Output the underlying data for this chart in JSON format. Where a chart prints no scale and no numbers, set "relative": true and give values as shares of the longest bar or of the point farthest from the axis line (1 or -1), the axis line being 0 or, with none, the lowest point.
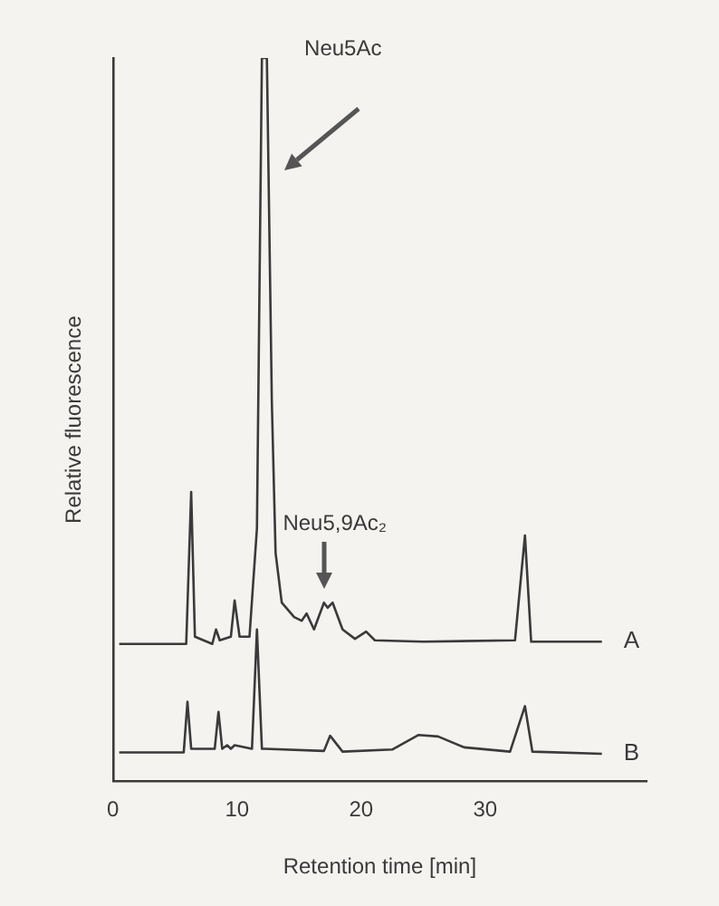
{
  "chart_data": {
    "type": "line",
    "relative": true,
    "xlabel": "Retention time [min]",
    "ylabel": "Relative fluorescence",
    "xlim": [
      0,
      43
    ],
    "xticks": [
      0,
      10,
      20,
      30
    ],
    "grid": false,
    "legend": false,
    "marker": "none",
    "line_style": "solid",
    "annotations": [
      {
        "text": "Neu5Ac",
        "x": 12.5,
        "y": 1
      },
      {
        "text": "Neu5,9Ac₂",
        "x": 17,
        "y": 0.25
      }
    ],
    "series": [
      {
        "name": "A",
        "color": "#3a3a3a",
        "x": [
          0.5,
          5.9,
          6.3,
          6.6,
          8.0,
          8.3,
          8.6,
          9.5,
          9.8,
          10.2,
          11.0,
          11.6,
          12.0,
          12.4,
          12.8,
          13.1,
          13.6,
          14.6,
          15.2,
          15.6,
          16.2,
          17.0,
          17.3,
          17.7,
          18.5,
          19.5,
          20.4,
          21.1,
          25,
          32.4,
          33.2,
          33.7,
          39.4
        ],
        "values": [
          0.19,
          0.19,
          0.4,
          0.2,
          0.19,
          0.21,
          0.195,
          0.2,
          0.25,
          0.2,
          0.2,
          0.35,
          1.0,
          1.0,
          0.525,
          0.316,
          0.247,
          0.227,
          0.222,
          0.232,
          0.21,
          0.247,
          0.24,
          0.247,
          0.21,
          0.197,
          0.207,
          0.195,
          0.193,
          0.195,
          0.34,
          0.193,
          0.193
        ]
      },
      {
        "name": "B",
        "color": "#3a3a3a",
        "x": [
          0.5,
          5.7,
          6.0,
          6.3,
          8.2,
          8.5,
          8.8,
          9.2,
          9.5,
          9.8,
          11.2,
          11.6,
          12.0,
          12.3,
          17.0,
          17.5,
          18.5,
          22.5,
          24.6,
          26.2,
          28.3,
          32.0,
          33.2,
          33.8,
          39.4
        ],
        "values": [
          0.04,
          0.04,
          0.11,
          0.045,
          0.045,
          0.096,
          0.045,
          0.05,
          0.045,
          0.05,
          0.045,
          0.21,
          0.045,
          0.045,
          0.042,
          0.063,
          0.041,
          0.044,
          0.064,
          0.062,
          0.047,
          0.041,
          0.104,
          0.041,
          0.038
        ]
      }
    ]
  }
}
